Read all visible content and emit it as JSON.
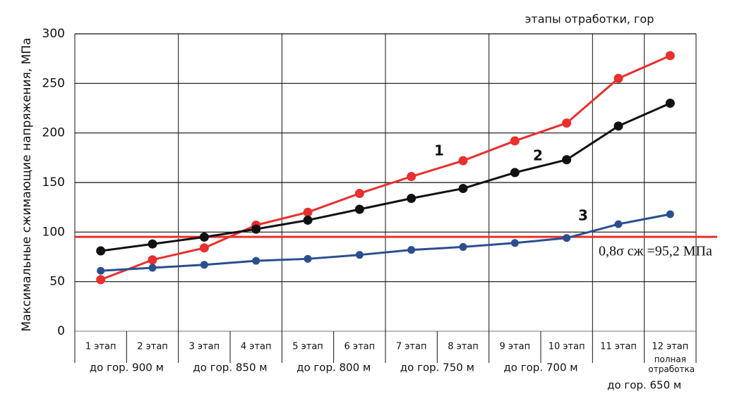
{
  "chart_data": {
    "type": "line",
    "title": "этапы отработки, гор",
    "y_label": "Максимальные сжимающие напряжения, МПа",
    "categories": [
      "1 этап",
      "2 этап",
      "3 этап",
      "4 этап",
      "5 этап",
      "6 этап",
      "7 этап",
      "8 этап",
      "9 этап",
      "10 этап",
      "11 этап",
      "12 этап"
    ],
    "category_note": "полная отработка",
    "group_labels": [
      "до гор. 900 м",
      "до гор. 850 м",
      "до гор. 800 м",
      "до гор. 750 м",
      "до гор. 700 м",
      "до гор. 650 м"
    ],
    "series": [
      {
        "name": "1",
        "color": "#e8302e",
        "values": [
          52,
          72,
          84,
          107,
          120,
          139,
          156,
          172,
          192,
          210,
          255,
          278
        ]
      },
      {
        "name": "2",
        "color": "#111111",
        "values": [
          81,
          88,
          95,
          103,
          112,
          123,
          134,
          144,
          160,
          173,
          207,
          230
        ]
      },
      {
        "name": "3",
        "color": "#2a4f8f",
        "values": [
          61,
          64,
          67,
          71,
          73,
          77,
          82,
          85,
          89,
          94,
          108,
          118
        ]
      }
    ],
    "threshold": {
      "value": 95.2,
      "label": "0,8σ сж =95,2 МПа",
      "color": "#e8302e"
    },
    "ylim": [
      0,
      300
    ],
    "yticks": [
      0,
      50,
      100,
      150,
      200,
      250,
      300
    ],
    "grid": true
  }
}
